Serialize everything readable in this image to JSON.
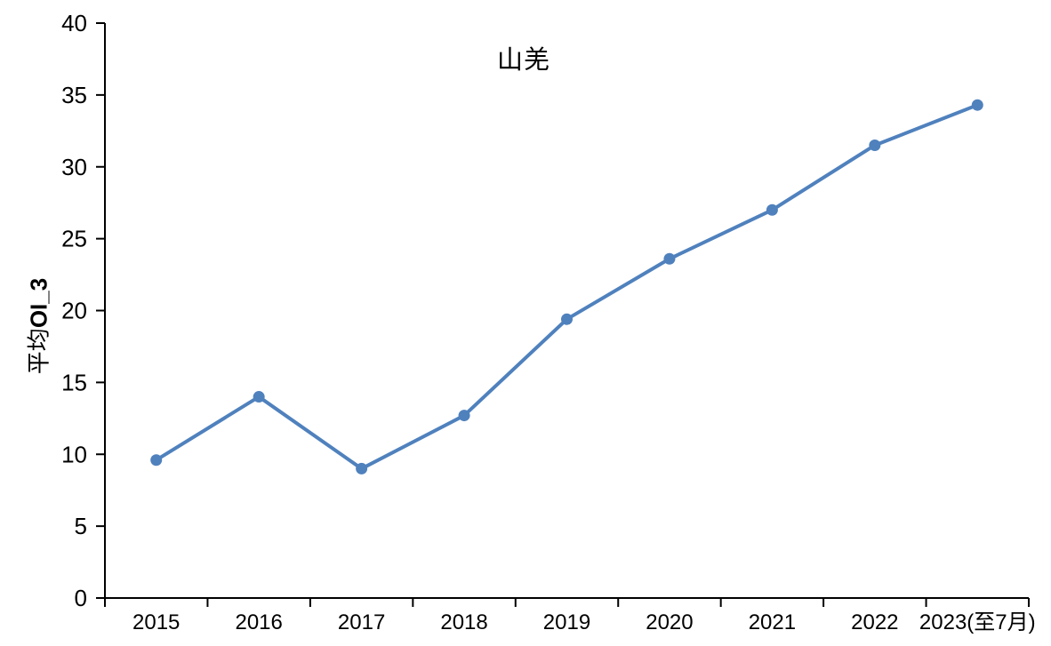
{
  "chart_data": {
    "type": "line",
    "title": "山羌",
    "ylabel": "平均OI_3",
    "ylabel_prefix": "平均",
    "ylabel_suffix": "OI_3",
    "xlabel": "",
    "categories": [
      "2015",
      "2016",
      "2017",
      "2018",
      "2019",
      "2020",
      "2021",
      "2022",
      "2023(至7月)"
    ],
    "series": [
      {
        "name": "山羌 平均OI_3",
        "values": [
          9.6,
          14.0,
          9.0,
          12.7,
          19.4,
          23.6,
          27.0,
          31.5,
          34.3
        ]
      }
    ],
    "ylim": [
      0,
      40
    ],
    "yticks": [
      0,
      5,
      10,
      15,
      20,
      25,
      30,
      35,
      40
    ],
    "grid": false,
    "legend_position": "none",
    "line_color": "#4F81BD",
    "marker": "circle",
    "axis_color": "#000000",
    "background_color": "#FFFFFF"
  }
}
